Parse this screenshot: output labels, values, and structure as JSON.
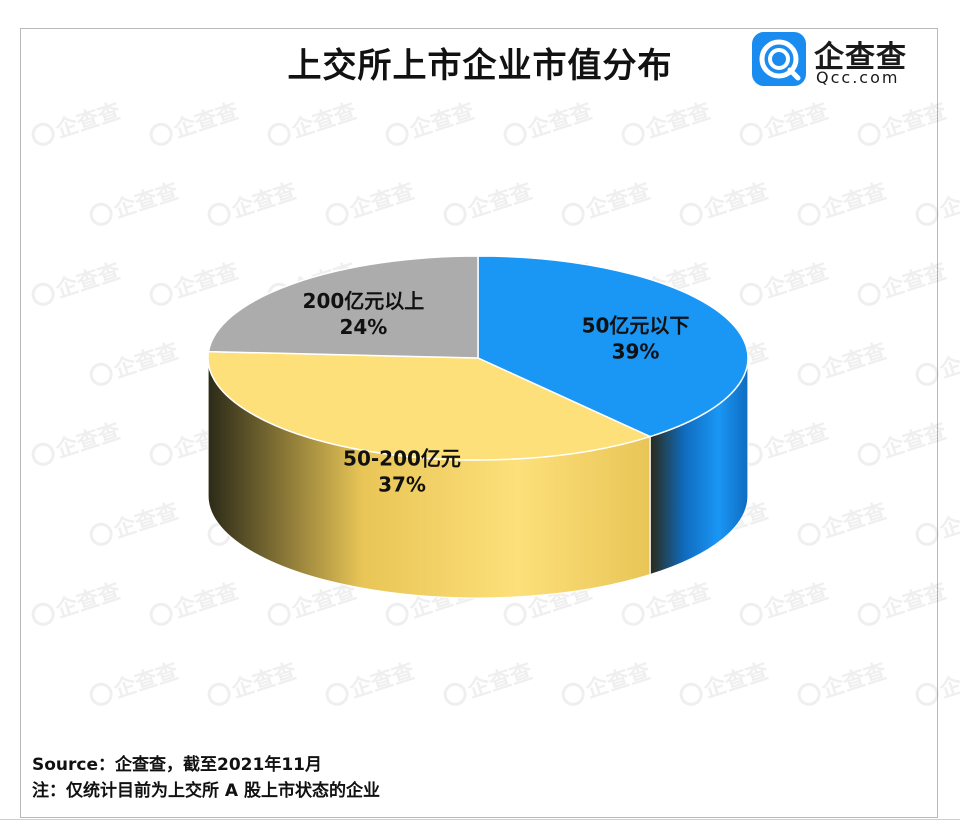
{
  "title": "上交所上市企业市值分布",
  "logo": {
    "cn": "企查查",
    "en": "Qcc.com",
    "watermark": "企查查",
    "brand_color": "#1a8cf0"
  },
  "notes": {
    "source": "Source：企查查，截至2021年11月",
    "note": "注：仅统计目前为上交所 A 股上市状态的企业"
  },
  "chart_data": {
    "type": "pie",
    "style": "3d",
    "title": "上交所上市企业市值分布",
    "slices": [
      {
        "label": "50亿元以下",
        "value": 39,
        "display": "39%",
        "color": "#1a96f5",
        "side_color": "#0f6cbf"
      },
      {
        "label": "50-200亿元",
        "value": 37,
        "display": "37%",
        "color": "#fde07a",
        "side_color": "#e8c556"
      },
      {
        "label": "200亿元以上",
        "value": 24,
        "display": "24%",
        "color": "#acacac",
        "side_color": "#8a8a8a"
      }
    ],
    "start_angle_deg": -90,
    "direction": "clockwise",
    "legend": "none"
  }
}
